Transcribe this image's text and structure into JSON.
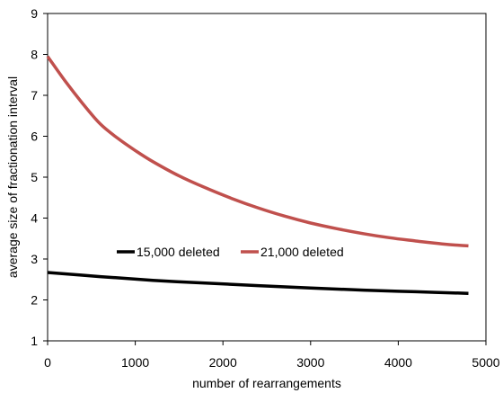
{
  "chart_data": {
    "type": "line",
    "title": "",
    "xlabel": "number of rearrangements",
    "ylabel": "average size of fractionation interval",
    "xlim": [
      0,
      5000
    ],
    "ylim": [
      1,
      9
    ],
    "xticks": [
      0,
      1000,
      2000,
      3000,
      4000,
      5000
    ],
    "yticks": [
      1,
      2,
      3,
      4,
      5,
      6,
      7,
      8,
      9
    ],
    "grid": false,
    "legend_position": "center",
    "series": [
      {
        "name": "15,000 deleted",
        "color": "#000000",
        "x": [
          0,
          600,
          1200,
          1800,
          2400,
          3000,
          3600,
          4200,
          4800
        ],
        "y": [
          2.67,
          2.57,
          2.48,
          2.41,
          2.35,
          2.29,
          2.24,
          2.2,
          2.16
        ]
      },
      {
        "name": "21,000 deleted",
        "color": "#c0504d",
        "x": [
          0,
          200,
          400,
          600,
          800,
          1000,
          1200,
          1500,
          1800,
          2100,
          2400,
          2700,
          3000,
          3300,
          3600,
          3900,
          4200,
          4500,
          4800
        ],
        "y": [
          7.95,
          7.35,
          6.8,
          6.3,
          5.95,
          5.65,
          5.38,
          5.03,
          4.74,
          4.48,
          4.25,
          4.05,
          3.88,
          3.74,
          3.62,
          3.52,
          3.44,
          3.37,
          3.32
        ]
      }
    ]
  }
}
